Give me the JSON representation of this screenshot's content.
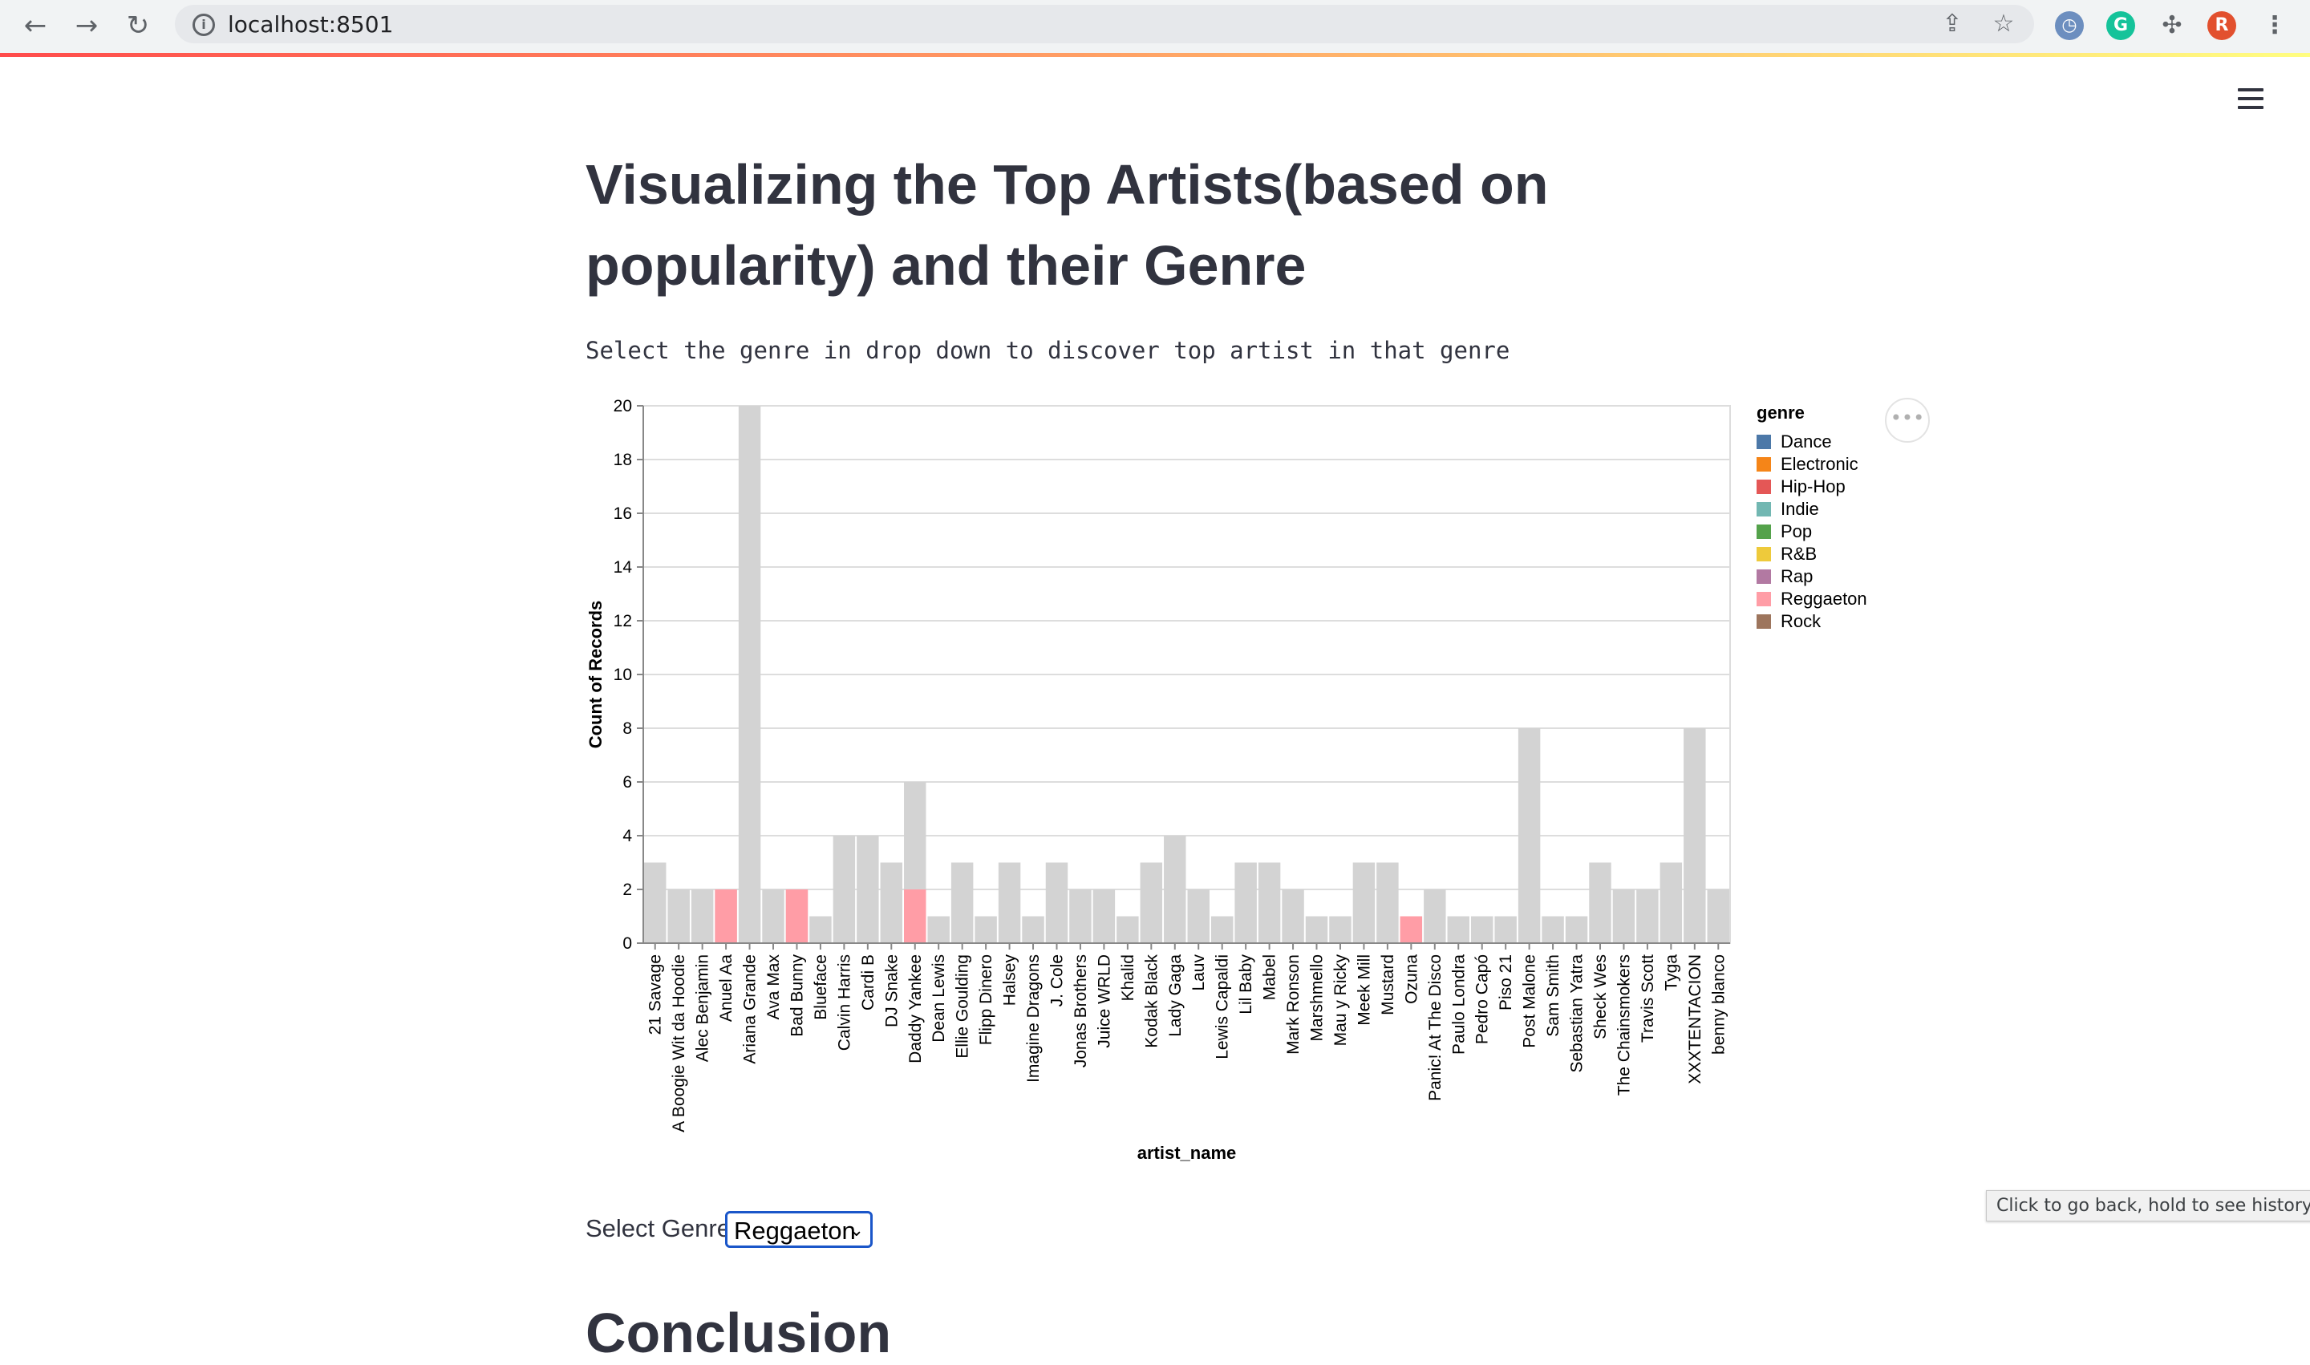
{
  "browser": {
    "url": "localhost:8501",
    "icons": {
      "back": "arrow-left-icon",
      "forward": "arrow-right-icon",
      "reload": "reload-icon",
      "share": "share-icon",
      "bookmark": "star-icon",
      "extensions": "puzzle-icon",
      "menu": "kebab-icon"
    },
    "profile_initial": "R",
    "grammarly_initial": "G"
  },
  "page": {
    "title": "Visualizing the Top Artists(based on popularity) and their Genre",
    "subtitle": "Select the genre in drop down to discover top artist in that genre",
    "select_label": "Select Genre",
    "select_value": "Reggaeton",
    "next_heading": "Conclusion",
    "tooltip": "Click to go back, hold to see history",
    "menu_icon": "hamburger-icon",
    "chart_menu_icon": "ellipsis-icon"
  },
  "chart_data": {
    "type": "bar",
    "xlabel": "artist_name",
    "ylabel": "Count of Records",
    "ylim": [
      0,
      20
    ],
    "yticks": [
      0,
      2,
      4,
      6,
      8,
      10,
      12,
      14,
      16,
      18,
      20
    ],
    "grid": true,
    "legend_title": "genre",
    "legend_position": "right",
    "legend": [
      {
        "label": "Dance",
        "color": "#4c78a8"
      },
      {
        "label": "Electronic",
        "color": "#f58518"
      },
      {
        "label": "Hip-Hop",
        "color": "#e45756"
      },
      {
        "label": "Indie",
        "color": "#72b7b2"
      },
      {
        "label": "Pop",
        "color": "#54a24b"
      },
      {
        "label": "R&B",
        "color": "#eeca3b"
      },
      {
        "label": "Rap",
        "color": "#b279a2"
      },
      {
        "label": "Reggaeton",
        "color": "#ff9da6"
      },
      {
        "label": "Rock",
        "color": "#9d755d"
      }
    ],
    "unselected_color": "#d3d3d3",
    "selected_genre": "Reggaeton",
    "categories": [
      "21 Savage",
      "A Boogie Wit da Hoodie",
      "Alec Benjamin",
      "Anuel Aa",
      "Ariana Grande",
      "Ava Max",
      "Bad Bunny",
      "Blueface",
      "Calvin Harris",
      "Cardi B",
      "DJ Snake",
      "Daddy Yankee",
      "Dean Lewis",
      "Ellie Goulding",
      "Flipp Dinero",
      "Halsey",
      "Imagine Dragons",
      "J. Cole",
      "Jonas Brothers",
      "Juice WRLD",
      "Khalid",
      "Kodak Black",
      "Lady Gaga",
      "Lauv",
      "Lewis Capaldi",
      "Lil Baby",
      "Mabel",
      "Mark Ronson",
      "Marshmello",
      "Mau y Ricky",
      "Meek Mill",
      "Mustard",
      "Ozuna",
      "Panic! At The Disco",
      "Paulo Londra",
      "Pedro Capó",
      "Piso 21",
      "Post Malone",
      "Sam Smith",
      "Sebastian Yatra",
      "Sheck Wes",
      "The Chainsmokers",
      "Travis Scott",
      "Tyga",
      "XXXTENTACION",
      "benny blanco"
    ],
    "values": [
      3,
      2,
      2,
      2,
      20,
      2,
      2,
      1,
      4,
      4,
      3,
      6,
      1,
      3,
      1,
      3,
      1,
      3,
      2,
      2,
      1,
      3,
      4,
      2,
      1,
      3,
      3,
      2,
      1,
      1,
      3,
      3,
      1,
      2,
      1,
      1,
      1,
      8,
      1,
      1,
      3,
      2,
      2,
      3,
      8,
      2
    ],
    "highlight_values": [
      0,
      0,
      0,
      2,
      0,
      0,
      2,
      0,
      0,
      0,
      0,
      2,
      0,
      0,
      0,
      0,
      0,
      0,
      0,
      0,
      0,
      0,
      0,
      0,
      0,
      0,
      0,
      0,
      0,
      0,
      0,
      0,
      1,
      0,
      0,
      0,
      0,
      0,
      0,
      0,
      0,
      0,
      0,
      0,
      0,
      0
    ]
  }
}
